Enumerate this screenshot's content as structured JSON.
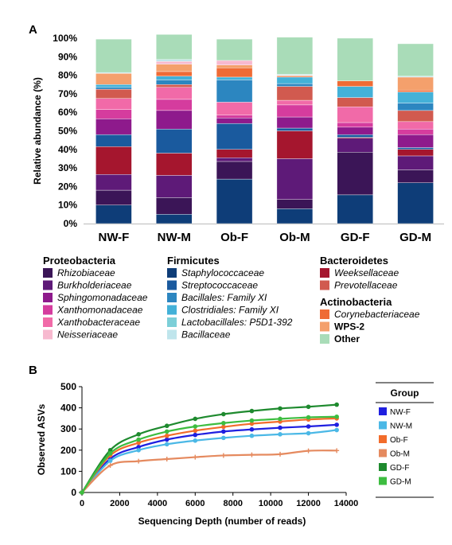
{
  "panels": {
    "a": "A",
    "b": "B"
  },
  "colors": {
    "Rhizobiaceae": "#3b1557",
    "Burkholderiaceae": "#5e1a78",
    "Sphingomonadaceae": "#8e1a8c",
    "Xanthomonadaceae": "#d53c9e",
    "Xanthobacteraceae": "#f16aa8",
    "Neisseriaceae": "#f7b9cf",
    "Staphylococcaceae": "#0e3d78",
    "Streptococcaceae": "#1a5a9e",
    "Bacillales: Family XI": "#2c86c0",
    "Clostridiales: Family XI": "#43b1d8",
    "Lactobacillales: P5D1-392": "#7ccfd8",
    "Bacillaceae": "#bfe5ec",
    "Weeksellaceae": "#a5162e",
    "Prevotellaceae": "#d15a4f",
    "Corynebacteriaceae": "#ef6b35",
    "WPS-2": "#f4a06c",
    "Other": "#a9dcb8"
  },
  "chart_data": [
    {
      "type": "bar",
      "stacked": true,
      "ylabel": "Relative abundance (%)",
      "ylim": [
        0,
        100
      ],
      "yticks": [
        "0%",
        "10%",
        "20%",
        "30%",
        "40%",
        "50%",
        "60%",
        "70%",
        "80%",
        "90%",
        "100%"
      ],
      "categories": [
        "NW-F",
        "NW-M",
        "Ob-F",
        "Ob-M",
        "GD-F",
        "GD-M"
      ],
      "series": [
        {
          "name": "Staphylococcaceae",
          "values": [
            10,
            5,
            24,
            8,
            15.5,
            22
          ]
        },
        {
          "name": "Rhizobiaceae",
          "values": [
            8,
            9,
            9.5,
            5,
            23,
            7
          ]
        },
        {
          "name": "Burkholderiaceae",
          "values": [
            8.5,
            12,
            2,
            22,
            7.5,
            7.5
          ]
        },
        {
          "name": "Weeksellaceae",
          "values": [
            15,
            12,
            4.5,
            15,
            0.5,
            3.5
          ]
        },
        {
          "name": "Streptococcaceae",
          "values": [
            6.5,
            13,
            14,
            1.5,
            1.5,
            1
          ]
        },
        {
          "name": "Sphingomonadaceae",
          "values": [
            8.5,
            10,
            3,
            6,
            4,
            7
          ]
        },
        {
          "name": "Xanthomonadaceae",
          "values": [
            5,
            6,
            1.5,
            6.5,
            2.5,
            3
          ]
        },
        {
          "name": "Xanthobacteraceae",
          "values": [
            6,
            6.5,
            7,
            2.5,
            8.5,
            4
          ]
        },
        {
          "name": "Prevotellaceae",
          "values": [
            5,
            1.5,
            0,
            7.5,
            5,
            6
          ]
        },
        {
          "name": "Bacillales: Family XI",
          "values": [
            1,
            2.5,
            12,
            1.5,
            0,
            4
          ]
        },
        {
          "name": "Clostridiales: Family XI",
          "values": [
            1.5,
            2,
            1.5,
            3.5,
            6,
            6
          ]
        },
        {
          "name": "Corynebacteriaceae",
          "values": [
            0,
            2.5,
            5,
            0.5,
            3,
            1
          ]
        },
        {
          "name": "WPS-2",
          "values": [
            6,
            4,
            1.5,
            0.5,
            0,
            7
          ]
        },
        {
          "name": "Neisseriaceae",
          "values": [
            0,
            1.5,
            2.5,
            0,
            0,
            0
          ]
        },
        {
          "name": "Bacillaceae",
          "values": [
            0.5,
            1,
            0,
            0.5,
            0,
            0.5
          ]
        },
        {
          "name": "Other",
          "values": [
            18,
            13.5,
            11.5,
            20,
            23,
            17.5
          ]
        }
      ]
    },
    {
      "type": "line",
      "xlabel": "Sequencing Depth (number of reads)",
      "ylabel": "Observed ASVs",
      "xlim": [
        0,
        14000
      ],
      "ylim": [
        0,
        500
      ],
      "xticks": [
        0,
        2000,
        4000,
        6000,
        8000,
        10000,
        12000,
        14000
      ],
      "yticks": [
        0,
        100,
        200,
        300,
        400,
        500
      ],
      "legend_title": "Group",
      "x": [
        0,
        1500,
        3000,
        4500,
        6000,
        7500,
        9000,
        10500,
        12000,
        13500
      ],
      "series": [
        {
          "name": "NW-F",
          "color": "#1f1fe0",
          "values": [
            0,
            160,
            215,
            250,
            272,
            288,
            298,
            306,
            312,
            320
          ]
        },
        {
          "name": "NW-M",
          "color": "#4bb8e6",
          "values": [
            0,
            150,
            200,
            228,
            245,
            258,
            268,
            275,
            280,
            295
          ]
        },
        {
          "name": "Ob-F",
          "color": "#f26c2b",
          "values": [
            0,
            175,
            235,
            268,
            292,
            310,
            325,
            335,
            345,
            350
          ]
        },
        {
          "name": "Ob-M",
          "color": "#e58a5f",
          "values": [
            0,
            128,
            148,
            158,
            167,
            175,
            178,
            181,
            197,
            198
          ]
        },
        {
          "name": "GD-F",
          "color": "#1e8a2e",
          "values": [
            0,
            200,
            275,
            315,
            348,
            370,
            385,
            397,
            405,
            415
          ]
        },
        {
          "name": "GD-M",
          "color": "#3dbd40",
          "values": [
            0,
            185,
            250,
            288,
            312,
            328,
            340,
            348,
            355,
            358
          ]
        }
      ]
    }
  ],
  "legend_a": {
    "groups": [
      {
        "title": "Proteobacteria",
        "items": [
          "Rhizobiaceae",
          "Burkholderiaceae",
          "Sphingomonadaceae",
          "Xanthomonadaceae",
          "Xanthobacteraceae",
          "Neisseriaceae"
        ]
      },
      {
        "title": "Firmicutes",
        "items": [
          "Staphylococcaceae",
          "Streptococcaceae",
          "Bacillales: Family XI",
          "Clostridiales: Family XI",
          "Lactobacillales: P5D1-392",
          "Bacillaceae"
        ]
      },
      {
        "title": "Bacteroidetes",
        "items": [
          "Weeksellaceae",
          "Prevotellaceae"
        ]
      },
      {
        "title": "Actinobacteria",
        "items": [
          "Corynebacteriaceae",
          "WPS-2",
          "Other"
        ]
      }
    ],
    "bold_items": [
      "WPS-2",
      "Other"
    ]
  }
}
